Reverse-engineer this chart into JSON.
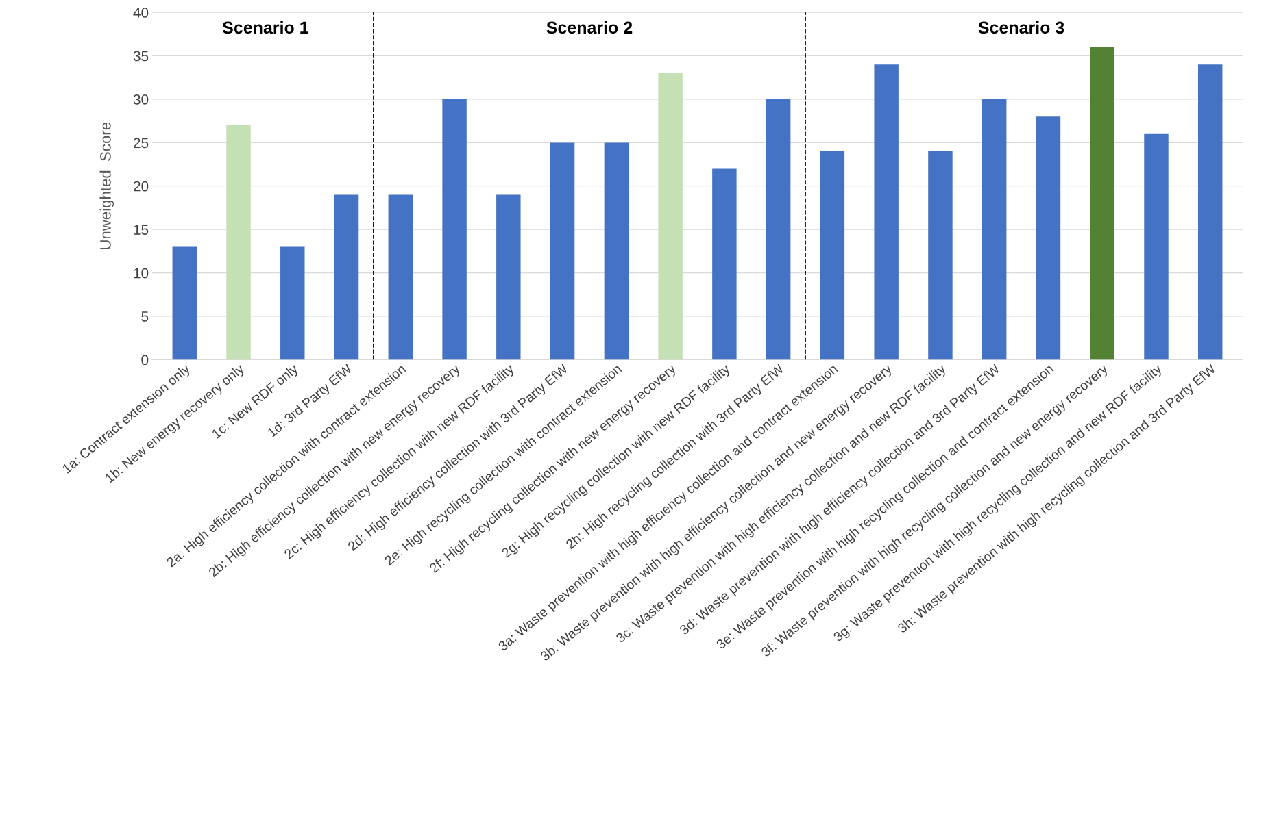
{
  "chart_data": {
    "type": "bar",
    "ylabel": "Unweighted  Score",
    "categories": [
      "1a: Contract extension only",
      "1b: New energy recovery only",
      "1c: New RDF only",
      "1d: 3rd Party EfW",
      "2a: High efficiency collection with contract extension",
      "2b: High efficiency collection with new energy recovery",
      "2c: High efficiency collection with new RDF facility",
      "2d: High efficiency collection with 3rd Party EfW",
      "2e: High recycling collection with contract extension",
      "2f: High recycling collection with new energy recovery",
      "2g: High recycling collection with new RDF facility",
      "2h: High recycling collection with 3rd Party EfW",
      "3a: Waste prevention with high efficiency collection and contract extension",
      "3b: Waste prevention with high efficiency collection and new energy recovery",
      "3c: Waste prevention with high efficiency collection and new RDF facility",
      "3d: Waste prevention with high efficiency collection and 3rd Party EfW",
      "3e: Waste prevention with high recycling collection and contract extension",
      "3f: Waste prevention with high recycling collection and new energy recovery",
      "3g: Waste prevention with high recycling collection and new RDF facility",
      "3h: Waste prevention with high recycling collection and 3rd Party EfW"
    ],
    "values": [
      13,
      27,
      13,
      19,
      19,
      30,
      19,
      25,
      25,
      33,
      22,
      30,
      24,
      34,
      24,
      30,
      28,
      36,
      26,
      34
    ],
    "colors": [
      "#4472c4",
      "#c5e0b4",
      "#4472c4",
      "#4472c4",
      "#4472c4",
      "#4472c4",
      "#4472c4",
      "#4472c4",
      "#4472c4",
      "#c5e0b4",
      "#4472c4",
      "#4472c4",
      "#4472c4",
      "#4472c4",
      "#4472c4",
      "#4472c4",
      "#4472c4",
      "#548235",
      "#4472c4",
      "#4472c4"
    ],
    "ylim": [
      0,
      40
    ],
    "yticks": [
      0,
      5,
      10,
      15,
      20,
      25,
      30,
      35,
      40
    ],
    "grid": "y",
    "annotations": [
      "Scenario 1",
      "Scenario 2",
      "Scenario 3"
    ]
  }
}
